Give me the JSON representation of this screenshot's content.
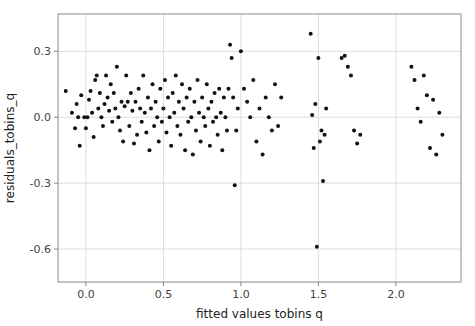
{
  "chart_data": {
    "type": "scatter",
    "xlabel": "fitted values tobins q",
    "ylabel": "residuals_tobins_q",
    "xlim": [
      -0.18,
      2.42
    ],
    "ylim": [
      -0.75,
      0.47
    ],
    "xticks": [
      {
        "value": 0.0,
        "label": "0.0"
      },
      0.5,
      {
        "value": 1.0,
        "label": "1.0"
      },
      1.5,
      {
        "value": 2.0,
        "label": "2.0"
      }
    ],
    "yticks": [
      -0.6,
      -0.3,
      {
        "value": 0.0,
        "label": "0.0"
      },
      0.3
    ],
    "grid": true,
    "color": "#111111",
    "x": [
      -0.13,
      -0.09,
      -0.07,
      -0.06,
      -0.05,
      -0.04,
      -0.03,
      -0.01,
      0.0,
      0.01,
      0.02,
      0.03,
      0.04,
      0.05,
      0.06,
      0.07,
      0.08,
      0.09,
      0.1,
      0.11,
      0.12,
      0.13,
      0.14,
      0.15,
      0.16,
      0.17,
      0.18,
      0.19,
      0.2,
      0.21,
      0.22,
      0.23,
      0.24,
      0.25,
      0.26,
      0.27,
      0.28,
      0.29,
      0.3,
      0.31,
      0.32,
      0.33,
      0.34,
      0.35,
      0.36,
      0.37,
      0.38,
      0.39,
      0.4,
      0.41,
      0.42,
      0.43,
      0.44,
      0.45,
      0.46,
      0.47,
      0.48,
      0.49,
      0.5,
      0.51,
      0.52,
      0.53,
      0.54,
      0.55,
      0.56,
      0.57,
      0.58,
      0.59,
      0.6,
      0.61,
      0.62,
      0.63,
      0.64,
      0.65,
      0.66,
      0.67,
      0.68,
      0.69,
      0.7,
      0.71,
      0.72,
      0.73,
      0.74,
      0.75,
      0.76,
      0.77,
      0.78,
      0.79,
      0.8,
      0.81,
      0.82,
      0.83,
      0.84,
      0.85,
      0.86,
      0.87,
      0.88,
      0.89,
      0.9,
      0.91,
      0.92,
      0.93,
      0.94,
      0.95,
      0.96,
      0.97,
      0.98,
      1.0,
      1.02,
      1.04,
      1.06,
      1.08,
      1.1,
      1.12,
      1.14,
      1.16,
      1.18,
      1.2,
      1.22,
      1.24,
      1.26,
      1.45,
      1.46,
      1.47,
      1.48,
      1.49,
      1.5,
      1.51,
      1.52,
      1.53,
      1.54,
      1.55,
      1.65,
      1.67,
      1.69,
      1.71,
      1.73,
      1.75,
      1.77,
      2.1,
      2.12,
      2.14,
      2.16,
      2.18,
      2.2,
      2.22,
      2.24,
      2.26,
      2.28,
      2.3
    ],
    "values": [
      0.12,
      0.02,
      -0.05,
      0.06,
      0.0,
      -0.13,
      0.1,
      0.0,
      -0.05,
      0.0,
      0.08,
      0.12,
      0.02,
      -0.09,
      0.17,
      0.19,
      0.04,
      0.11,
      0.0,
      -0.04,
      0.06,
      0.19,
      0.09,
      0.03,
      0.15,
      -0.02,
      0.11,
      0.04,
      0.23,
      0.0,
      -0.06,
      0.07,
      -0.11,
      0.05,
      0.19,
      0.07,
      -0.04,
      0.11,
      0.03,
      -0.12,
      0.07,
      -0.08,
      0.13,
      0.04,
      -0.02,
      0.19,
      0.02,
      -0.07,
      0.09,
      -0.15,
      0.04,
      0.15,
      -0.04,
      0.07,
      0.0,
      -0.11,
      0.13,
      -0.02,
      0.04,
      0.17,
      -0.07,
      0.09,
      0.0,
      -0.13,
      0.11,
      0.02,
      0.19,
      -0.04,
      0.07,
      -0.08,
      0.15,
      0.04,
      -0.15,
      0.09,
      -0.02,
      0.13,
      0.0,
      -0.17,
      0.07,
      -0.06,
      0.17,
      0.02,
      -0.11,
      0.09,
      0.0,
      -0.04,
      0.15,
      0.04,
      -0.13,
      0.07,
      -0.02,
      0.11,
      0.0,
      -0.08,
      0.13,
      0.02,
      -0.15,
      0.09,
      0.0,
      -0.06,
      0.13,
      0.33,
      0.27,
      0.09,
      -0.31,
      -0.06,
      0.04,
      0.3,
      0.13,
      0.07,
      0.0,
      0.17,
      -0.11,
      0.04,
      -0.17,
      0.09,
      0.0,
      -0.06,
      0.15,
      -0.04,
      0.09,
      0.38,
      0.01,
      -0.14,
      0.06,
      -0.59,
      0.27,
      -0.11,
      -0.06,
      -0.29,
      -0.08,
      0.04,
      0.27,
      0.28,
      0.23,
      0.19,
      -0.06,
      -0.12,
      -0.08,
      0.23,
      0.17,
      0.04,
      -0.02,
      0.19,
      0.1,
      -0.14,
      0.08,
      -0.17,
      0.02,
      -0.08
    ]
  }
}
